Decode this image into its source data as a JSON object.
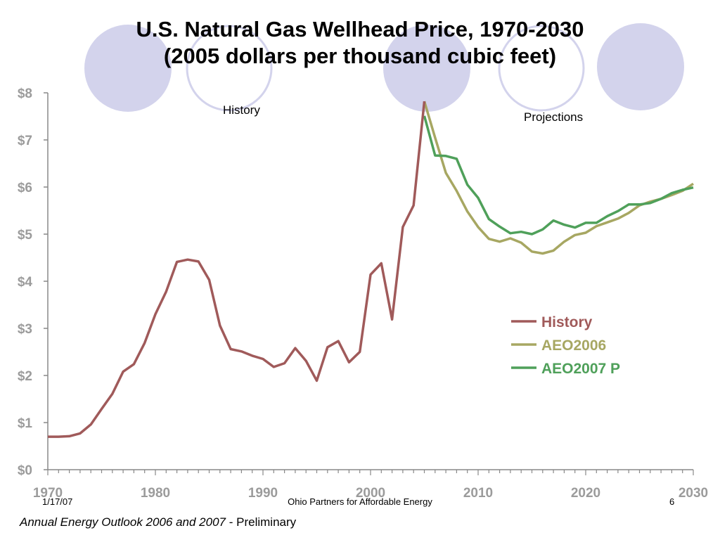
{
  "slide": {
    "title_line1": "U.S. Natural Gas Wellhead Price, 1970-2030",
    "title_line2": "(2005 dollars per thousand cubic feet)",
    "footer_date": "1/17/07",
    "footer_center": "Ohio Partners for Affordable Energy",
    "footer_page": "6",
    "source_italic": "Annual Energy Outlook 2006 and 2007",
    "source_rest": " - Preliminary",
    "decor_fill": "#d3d3ec",
    "decor_stroke": "#d3d3ec"
  },
  "chart_data": {
    "type": "line",
    "title": "",
    "xlabel": "",
    "ylabel": "",
    "xlim": [
      1970,
      2030
    ],
    "ylim": [
      0,
      8
    ],
    "x_ticks": [
      1970,
      1980,
      1990,
      2000,
      2010,
      2020,
      2030
    ],
    "x_tick_labels": [
      "1970",
      "1980",
      "1990",
      "2000",
      "2010",
      "2020",
      "2030"
    ],
    "y_ticks": [
      0,
      1,
      2,
      3,
      4,
      5,
      6,
      7,
      8
    ],
    "y_tick_labels": [
      "$0",
      "$1",
      "$2",
      "$3",
      "$4",
      "$5",
      "$6",
      "$7",
      "$8"
    ],
    "grid": false,
    "legend_position": "center-right",
    "annotations": [
      {
        "text": "History",
        "x": 1988,
        "y": 7.55
      },
      {
        "text": "Projections",
        "x": 2017,
        "y": 7.4
      }
    ],
    "series": [
      {
        "name": "History",
        "color": "#a05a5a",
        "x": [
          1970,
          1971,
          1972,
          1973,
          1974,
          1975,
          1976,
          1977,
          1978,
          1979,
          1980,
          1981,
          1982,
          1983,
          1984,
          1985,
          1986,
          1987,
          1988,
          1989,
          1990,
          1991,
          1992,
          1993,
          1994,
          1995,
          1996,
          1997,
          1998,
          1999,
          2000,
          2001,
          2002,
          2003,
          2004,
          2005
        ],
        "y": [
          0.7,
          0.7,
          0.71,
          0.77,
          0.96,
          1.29,
          1.61,
          2.08,
          2.24,
          2.69,
          3.3,
          3.78,
          4.41,
          4.46,
          4.42,
          4.03,
          3.06,
          2.56,
          2.51,
          2.42,
          2.35,
          2.18,
          2.26,
          2.58,
          2.31,
          1.89,
          2.6,
          2.73,
          2.28,
          2.5,
          4.14,
          4.38,
          3.19,
          5.15,
          5.61,
          7.82
        ]
      },
      {
        "name": "AEO2006",
        "color": "#a7a762",
        "x": [
          2005,
          2006,
          2007,
          2008,
          2009,
          2010,
          2011,
          2012,
          2013,
          2014,
          2015,
          2016,
          2017,
          2018,
          2019,
          2020,
          2021,
          2022,
          2023,
          2024,
          2025,
          2026,
          2027,
          2028,
          2029,
          2030
        ],
        "y": [
          7.82,
          7.05,
          6.3,
          5.92,
          5.48,
          5.15,
          4.9,
          4.84,
          4.91,
          4.82,
          4.63,
          4.59,
          4.65,
          4.84,
          4.98,
          5.03,
          5.17,
          5.25,
          5.33,
          5.45,
          5.61,
          5.69,
          5.75,
          5.83,
          5.92,
          6.07
        ]
      },
      {
        "name": "AEO2007 P",
        "color": "#4fa05a",
        "x": [
          2005,
          2006,
          2007,
          2008,
          2009,
          2010,
          2011,
          2012,
          2013,
          2014,
          2015,
          2016,
          2017,
          2018,
          2019,
          2020,
          2021,
          2022,
          2023,
          2024,
          2025,
          2026,
          2027,
          2028,
          2029,
          2030
        ],
        "y": [
          7.51,
          6.67,
          6.66,
          6.6,
          6.05,
          5.77,
          5.32,
          5.16,
          5.02,
          5.05,
          5.0,
          5.1,
          5.29,
          5.2,
          5.14,
          5.24,
          5.24,
          5.38,
          5.49,
          5.63,
          5.63,
          5.66,
          5.75,
          5.87,
          5.94,
          5.99
        ]
      }
    ]
  }
}
